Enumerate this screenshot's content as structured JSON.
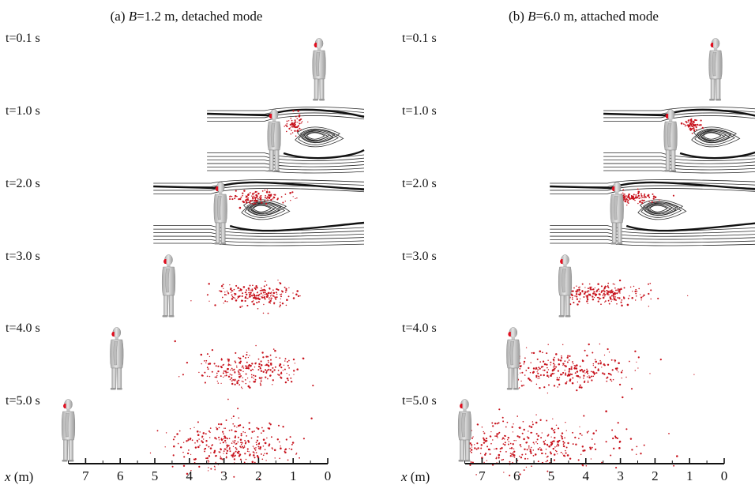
{
  "panels": [
    {
      "id": "a",
      "title_prefix": "(a) ",
      "title_var": "B",
      "title_suffix": "=1.2 m, detached mode",
      "mode": "detached",
      "rows": [
        {
          "label": "t=0.1 s",
          "person_x_m": 0.25,
          "streamlines": false,
          "cloud": null
        },
        {
          "label": "t=1.0 s",
          "person_x_m": 1.55,
          "streamlines": true,
          "cloud": {
            "center_x_m": 0.95,
            "spread_x_m": 0.12,
            "spread_y": 6,
            "count": 70,
            "near_body": false
          }
        },
        {
          "label": "t=2.0 s",
          "person_x_m": 3.1,
          "streamlines": true,
          "cloud": {
            "center_x_m": 1.95,
            "spread_x_m": 0.45,
            "spread_y": 5,
            "count": 110,
            "near_body": false
          }
        },
        {
          "label": "t=3.0 s",
          "person_x_m": 4.6,
          "streamlines": false,
          "cloud": {
            "center_x_m": 2.1,
            "spread_x_m": 0.55,
            "spread_y": 7,
            "count": 210,
            "near_body": false
          }
        },
        {
          "label": "t=4.0 s",
          "person_x_m": 6.1,
          "streamlines": false,
          "cloud": {
            "center_x_m": 2.4,
            "spread_x_m": 0.75,
            "spread_y": 11,
            "count": 240,
            "near_body": false
          }
        },
        {
          "label": "t=5.0 s",
          "person_x_m": 7.5,
          "streamlines": false,
          "cloud": {
            "center_x_m": 2.7,
            "spread_x_m": 0.85,
            "spread_y": 15,
            "count": 300,
            "near_body": false
          }
        }
      ],
      "axis": {
        "label_var": "x",
        "label_unit": " (m)",
        "ticks": [
          "7",
          "6",
          "5",
          "4",
          "3",
          "2",
          "1",
          "0"
        ],
        "tick_values": [
          7,
          6,
          5,
          4,
          3,
          2,
          1,
          0
        ]
      }
    },
    {
      "id": "b",
      "title_prefix": "(b) ",
      "title_var": "B",
      "title_suffix": "=6.0 m, attached mode",
      "mode": "attached",
      "rows": [
        {
          "label": "t=0.1 s",
          "person_x_m": 0.25,
          "streamlines": false,
          "cloud": null
        },
        {
          "label": "t=1.0 s",
          "person_x_m": 1.55,
          "streamlines": true,
          "cloud": {
            "center_x_m": 0.95,
            "spread_x_m": 0.12,
            "spread_y": 4,
            "count": 70,
            "near_body": false
          }
        },
        {
          "label": "t=2.0 s",
          "person_x_m": 3.1,
          "streamlines": true,
          "cloud": {
            "center_x_m": 2.6,
            "spread_x_m": 0.35,
            "spread_y": 4,
            "count": 110,
            "near_body": false
          }
        },
        {
          "label": "t=3.0 s",
          "person_x_m": 4.6,
          "streamlines": false,
          "cloud": {
            "center_x_m": 3.4,
            "spread_x_m": 0.7,
            "spread_y": 6,
            "count": 230,
            "near_body": true
          }
        },
        {
          "label": "t=4.0 s",
          "person_x_m": 6.1,
          "streamlines": false,
          "cloud": {
            "center_x_m": 4.4,
            "spread_x_m": 1.1,
            "spread_y": 11,
            "count": 270,
            "near_body": true
          }
        },
        {
          "label": "t=5.0 s",
          "person_x_m": 7.5,
          "streamlines": false,
          "cloud": {
            "center_x_m": 5.2,
            "spread_x_m": 1.4,
            "spread_y": 16,
            "count": 330,
            "near_body": true
          }
        }
      ],
      "axis": {
        "label_var": "x",
        "label_unit": " (m)",
        "ticks": [
          "7",
          "6",
          "5",
          "4",
          "3",
          "2",
          "1",
          "0"
        ],
        "tick_values": [
          7,
          6,
          5,
          4,
          3,
          2,
          1,
          0
        ]
      }
    }
  ],
  "colors": {
    "particle": "#c8141e",
    "mask": "#e01020",
    "body": "#cfcfcf",
    "body_edge": "#8a8a8a",
    "streamline": "#2a2a2a"
  }
}
